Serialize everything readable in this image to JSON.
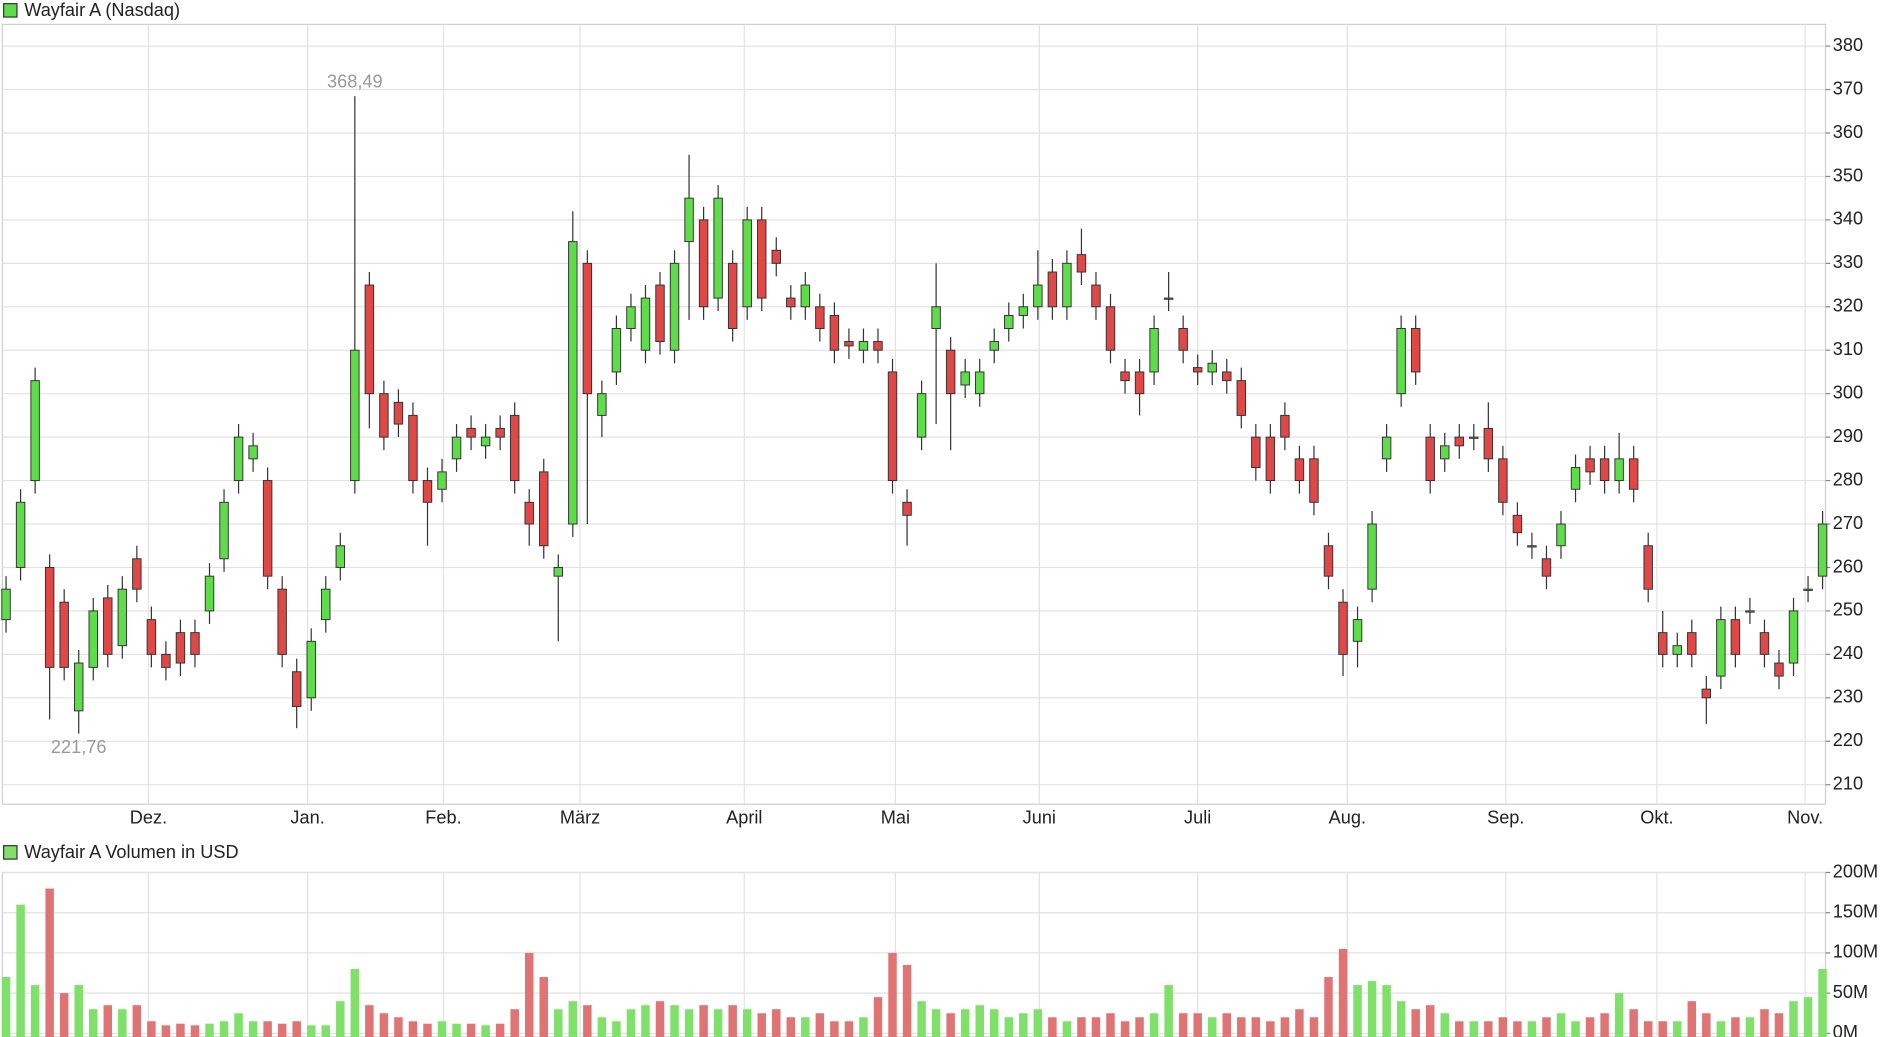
{
  "chart_data": [
    {
      "type": "candlestick",
      "grid": true,
      "up_color": "#5edc4a",
      "down_color": "#e04848",
      "xlim": [
        -0.25,
        125.2
      ],
      "xticks": [
        {
          "value": 9.8,
          "label": "Dez."
        },
        {
          "value": 20.75,
          "label": "Jan."
        },
        {
          "value": 30.1,
          "label": "Feb."
        },
        {
          "value": 39.5,
          "label": "März"
        },
        {
          "value": 50.8,
          "label": "April"
        },
        {
          "value": 61.2,
          "label": "Mai"
        },
        {
          "value": 71.1,
          "label": "Juni"
        },
        {
          "value": 82,
          "label": "Juli"
        },
        {
          "value": 92.3,
          "label": "Aug."
        },
        {
          "value": 103.2,
          "label": "Sep."
        },
        {
          "value": 113.6,
          "label": "Okt."
        },
        {
          "value": 123.8,
          "label": "Nov."
        }
      ],
      "ylim": [
        205.5,
        385
      ],
      "yticks": [
        210,
        220,
        230,
        240,
        250,
        260,
        270,
        280,
        290,
        300,
        310,
        320,
        330,
        340,
        350,
        360,
        370,
        380
      ],
      "annotations": [
        {
          "label": "368,49",
          "value": 368.49
        },
        {
          "label": "221,76",
          "value": 221.76
        }
      ],
      "series": [
        {
          "name": "Wayfair A (Nasdaq)",
          "open": [
            248,
            260,
            280,
            260,
            252,
            227,
            237,
            253,
            242,
            262,
            248,
            240,
            245,
            245,
            250,
            262,
            280,
            285,
            280,
            255,
            236,
            230,
            248,
            260,
            280,
            325,
            300,
            298,
            295,
            280,
            278,
            285,
            292,
            288,
            292,
            295,
            275,
            282,
            258,
            270,
            330,
            295,
            305,
            315,
            310,
            325,
            310,
            335,
            340,
            322,
            330,
            320,
            340,
            333,
            322,
            320,
            320,
            318,
            312,
            310,
            312,
            305,
            275,
            290,
            315,
            310,
            302,
            300,
            310,
            315,
            318,
            320,
            328,
            320,
            332,
            325,
            320,
            305,
            305,
            305,
            322,
            315,
            306,
            305,
            305,
            303,
            290,
            290,
            295,
            285,
            285,
            265,
            252,
            243,
            255,
            285,
            300,
            315,
            290,
            285,
            290,
            290,
            292,
            285,
            272,
            265,
            262,
            265,
            278,
            285,
            285,
            280,
            285,
            265,
            245,
            240,
            245,
            232,
            235,
            248,
            250,
            245,
            238,
            238,
            255,
            258
          ],
          "high": [
            258,
            278,
            306,
            263,
            255,
            241,
            253,
            256,
            258,
            265,
            251,
            243,
            248,
            248,
            261,
            278,
            293,
            291,
            283,
            258,
            239,
            246,
            258,
            268,
            368.49,
            328,
            303,
            301,
            298,
            283,
            285,
            293,
            295,
            293,
            295,
            298,
            278,
            285,
            263,
            342,
            333,
            303,
            318,
            323,
            325,
            328,
            333,
            355,
            343,
            348,
            333,
            343,
            343,
            336,
            325,
            328,
            323,
            321,
            315,
            315,
            315,
            308,
            278,
            303,
            330,
            313,
            308,
            308,
            315,
            321,
            323,
            333,
            331,
            333,
            338,
            328,
            323,
            308,
            308,
            318,
            328,
            318,
            309,
            310,
            308,
            306,
            293,
            293,
            298,
            288,
            288,
            268,
            255,
            251,
            273,
            293,
            318,
            318,
            293,
            291,
            293,
            293,
            298,
            288,
            275,
            268,
            265,
            273,
            286,
            288,
            288,
            291,
            288,
            268,
            250,
            245,
            248,
            235,
            251,
            251,
            253,
            248,
            241,
            253,
            258,
            273
          ],
          "low": [
            245,
            257,
            277,
            225,
            234,
            221.76,
            234,
            237,
            239,
            252,
            237,
            234,
            235,
            237,
            247,
            259,
            277,
            282,
            255,
            237,
            223,
            227,
            245,
            257,
            277,
            292,
            287,
            290,
            277,
            265,
            275,
            282,
            287,
            285,
            287,
            277,
            265,
            262,
            243,
            267,
            270,
            290,
            302,
            312,
            307,
            309,
            307,
            317,
            317,
            319,
            312,
            317,
            319,
            327,
            317,
            317,
            312,
            307,
            308,
            307,
            307,
            277,
            265,
            287,
            293,
            287,
            299,
            297,
            307,
            312,
            315,
            317,
            317,
            317,
            325,
            317,
            307,
            300,
            295,
            302,
            319,
            307,
            302,
            302,
            300,
            292,
            280,
            277,
            287,
            277,
            272,
            255,
            235,
            237,
            252,
            282,
            297,
            302,
            277,
            282,
            285,
            287,
            282,
            272,
            265,
            262,
            255,
            262,
            275,
            279,
            277,
            277,
            275,
            252,
            237,
            237,
            237,
            224,
            232,
            237,
            247,
            237,
            232,
            235,
            252,
            255
          ],
          "close": [
            255,
            275,
            303,
            237,
            237,
            238,
            250,
            240,
            255,
            255,
            240,
            237,
            238,
            240,
            258,
            275,
            290,
            288,
            258,
            240,
            228,
            243,
            255,
            265,
            310,
            300,
            290,
            293,
            280,
            275,
            282,
            290,
            290,
            290,
            290,
            280,
            270,
            265,
            260,
            335,
            300,
            300,
            315,
            320,
            322,
            312,
            330,
            345,
            320,
            345,
            315,
            340,
            322,
            330,
            320,
            325,
            315,
            310,
            311,
            312,
            310,
            280,
            272,
            300,
            320,
            300,
            305,
            305,
            312,
            318,
            320,
            325,
            320,
            330,
            328,
            320,
            310,
            303,
            300,
            315,
            322,
            310,
            305,
            307,
            303,
            295,
            283,
            280,
            290,
            280,
            275,
            258,
            240,
            248,
            270,
            290,
            315,
            305,
            280,
            288,
            288,
            290,
            285,
            275,
            268,
            265,
            258,
            270,
            283,
            282,
            280,
            285,
            278,
            255,
            240,
            242,
            240,
            230,
            248,
            240,
            250,
            240,
            235,
            250,
            255,
            270
          ]
        }
      ]
    },
    {
      "type": "volume",
      "grid": true,
      "up_color": "#7fe06a",
      "down_color": "#e07474",
      "ylim": [
        0,
        200
      ],
      "yticks": [
        {
          "value": 0,
          "label": "0M"
        },
        {
          "value": 50,
          "label": "50M"
        },
        {
          "value": 100,
          "label": "100M"
        },
        {
          "value": 150,
          "label": "150M"
        },
        {
          "value": 200,
          "label": "200M"
        }
      ],
      "series": [
        {
          "name": "Wayfair A Volumen in USD",
          "values": [
            70,
            160,
            60,
            180,
            50,
            60,
            30,
            35,
            30,
            35,
            15,
            10,
            12,
            10,
            12,
            15,
            25,
            15,
            15,
            12,
            15,
            10,
            10,
            40,
            80,
            35,
            25,
            20,
            15,
            12,
            15,
            12,
            12,
            10,
            12,
            30,
            100,
            70,
            30,
            40,
            35,
            20,
            15,
            30,
            35,
            40,
            35,
            30,
            35,
            30,
            35,
            30,
            25,
            30,
            20,
            20,
            25,
            15,
            15,
            20,
            45,
            100,
            85,
            40,
            30,
            25,
            30,
            35,
            30,
            20,
            25,
            30,
            20,
            15,
            20,
            20,
            25,
            15,
            20,
            25,
            60,
            25,
            25,
            20,
            25,
            20,
            20,
            15,
            20,
            30,
            20,
            70,
            105,
            60,
            65,
            60,
            40,
            30,
            35,
            25,
            15,
            15,
            15,
            20,
            15,
            15,
            20,
            25,
            15,
            20,
            25,
            50,
            30,
            15,
            15,
            15,
            40,
            25,
            15,
            20,
            20,
            30,
            25,
            40,
            45,
            80
          ]
        }
      ]
    }
  ]
}
